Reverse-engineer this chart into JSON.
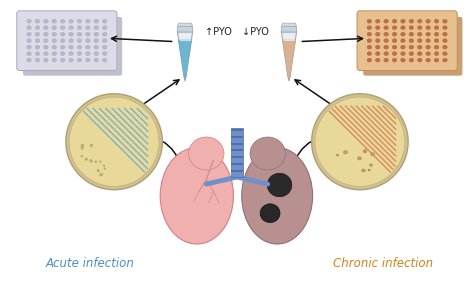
{
  "background_color": "#ffffff",
  "left_label": "Acute infection",
  "right_label": "Chronic infection",
  "left_label_color": "#4a8fc4",
  "right_label_color": "#d4821a",
  "left_pyo_text": "↑PYO",
  "right_pyo_text": "↓PYO",
  "left_tube_liquid": "#5aabcc",
  "right_tube_liquid": "#d4a882",
  "left_petri_bg": "#e8d89a",
  "left_petri_streak": "#5aabcc",
  "right_petri_bg": "#e8d89a",
  "right_petri_streak": "#d4784a",
  "lung_left_color": "#f0b0b0",
  "lung_left_edge": "#d08080",
  "lung_right_color": "#b89090",
  "lung_right_edge": "#907070",
  "trachea_color": "#7090cc",
  "trachea_dark": "#5070aa",
  "lesion_color": "#303030",
  "arrow_color": "#111111",
  "plate_left_well": "#e8e8ee",
  "plate_left_bg": "#d8d8e2",
  "plate_right_well": "#d4956a",
  "plate_right_bg": "#c8845a",
  "figsize": [
    4.74,
    3.07
  ],
  "dpi": 100
}
